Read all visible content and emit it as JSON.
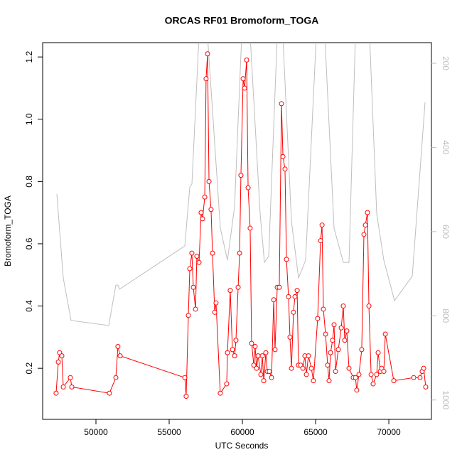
{
  "chart_data": {
    "type": "line",
    "title": "ORCAS RF01 Bromoform_TOGA",
    "xlabel": "UTC Seconds",
    "ylabel": "Bromoform_TOGA",
    "xlim": [
      46360,
      72910
    ],
    "xticks": [
      50000,
      55000,
      60000,
      65000,
      70000
    ],
    "ylim": [
      0.036,
      1.246
    ],
    "yticks": [
      0.2,
      0.4,
      0.6,
      0.8,
      {
        "value": 1,
        "label": "1.0"
      },
      1.2
    ],
    "y2lim": [
      1046,
      151
    ],
    "y2ticks": [
      200,
      400,
      600,
      800,
      1000
    ],
    "series": [
      {
        "color": "#bebebe",
        "axis": "y2",
        "markers": false,
        "x": [
          47330,
          47767,
          48301,
          50874,
          51359,
          51505,
          51602,
          56068,
          56407,
          56553,
          57038,
          57621,
          58495,
          58980,
          59465,
          59951,
          60533,
          61213,
          61504,
          61795,
          62378,
          62766,
          63349,
          63834,
          64319,
          65047,
          65630,
          66261,
          66892,
          67280,
          67717,
          68688,
          69173,
          69659,
          70387,
          71600,
          72474
        ],
        "values": [
          511,
          710,
          811,
          823,
          727,
          727,
          737,
          634,
          494,
          487,
          136,
          136,
          592,
          668,
          541,
          136,
          136,
          558,
          673,
          659,
          136,
          136,
          575,
          710,
          668,
          136,
          136,
          592,
          673,
          673,
          136,
          136,
          558,
          668,
          764,
          706,
          293
        ]
      },
      {
        "color": "#ff0000",
        "axis": "y",
        "markers": true,
        "x": [
          47280,
          47430,
          47520,
          47670,
          47770,
          48250,
          48350,
          50920,
          51360,
          51500,
          51650,
          56070,
          56160,
          56310,
          56410,
          56550,
          56650,
          56800,
          56890,
          57040,
          57180,
          57280,
          57430,
          57520,
          57620,
          57720,
          57860,
          57960,
          58110,
          58200,
          58490,
          58930,
          58980,
          59170,
          59320,
          59470,
          59560,
          59710,
          59810,
          59900,
          60050,
          60150,
          60290,
          60390,
          60530,
          60630,
          60780,
          60870,
          60970,
          61070,
          61260,
          61360,
          61460,
          61600,
          61700,
          61840,
          61990,
          62140,
          62230,
          62380,
          62520,
          62670,
          62770,
          62910,
          63010,
          63150,
          63250,
          63350,
          63490,
          63590,
          63740,
          63830,
          63980,
          64130,
          64270,
          64370,
          64510,
          64710,
          64850,
          65140,
          65340,
          65440,
          65530,
          65680,
          65820,
          65920,
          66020,
          66160,
          66260,
          66360,
          66550,
          66750,
          66890,
          66990,
          67130,
          67280,
          67570,
          67720,
          67810,
          67960,
          68150,
          68300,
          68400,
          68540,
          68640,
          68790,
          68930,
          69170,
          69270,
          69420,
          69510,
          69660,
          69760,
          70340,
          71700,
          72130,
          72280,
          72380,
          72520
        ],
        "values": [
          0.12,
          0.22,
          0.25,
          0.24,
          0.14,
          0.17,
          0.14,
          0.12,
          0.17,
          0.27,
          0.24,
          0.17,
          0.11,
          0.37,
          0.52,
          0.57,
          0.46,
          0.39,
          0.56,
          0.54,
          0.7,
          0.68,
          0.75,
          1.13,
          1.21,
          0.8,
          0.71,
          0.57,
          0.38,
          0.41,
          0.12,
          0.15,
          0.25,
          0.45,
          0.26,
          0.24,
          0.29,
          0.46,
          0.57,
          0.82,
          1.13,
          1.1,
          1.19,
          0.78,
          0.65,
          0.28,
          0.21,
          0.27,
          0.2,
          0.24,
          0.18,
          0.24,
          0.16,
          0.25,
          0.19,
          0.19,
          0.17,
          0.42,
          0.26,
          0.46,
          0.46,
          1.05,
          0.88,
          0.84,
          0.55,
          0.43,
          0.3,
          0.2,
          0.38,
          0.43,
          0.45,
          0.21,
          0.21,
          0.2,
          0.24,
          0.18,
          0.24,
          0.2,
          0.16,
          0.36,
          0.61,
          0.66,
          0.39,
          0.31,
          0.21,
          0.16,
          0.25,
          0.29,
          0.34,
          0.19,
          0.26,
          0.33,
          0.4,
          0.29,
          0.32,
          0.2,
          0.17,
          0.17,
          0.13,
          0.18,
          0.26,
          0.63,
          0.66,
          0.7,
          0.4,
          0.18,
          0.15,
          0.18,
          0.25,
          0.19,
          0.2,
          0.19,
          0.31,
          0.16,
          0.17,
          0.17,
          0.19,
          0.2,
          0.14
        ]
      }
    ]
  }
}
